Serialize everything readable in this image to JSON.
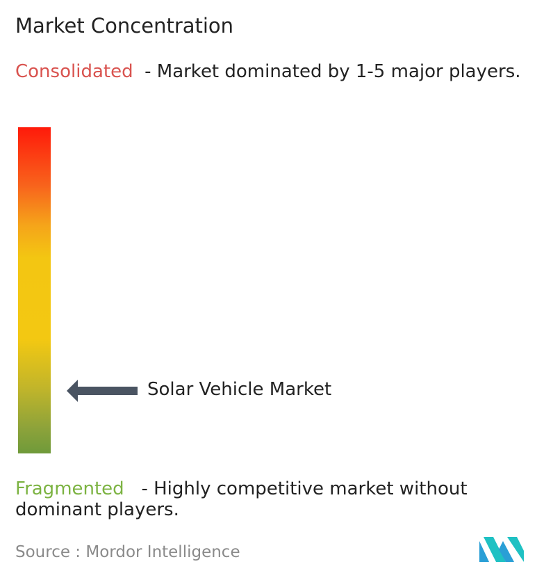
{
  "title": "Market Concentration",
  "consolidated": {
    "label": "Consolidated",
    "description": "- Market dominated by 1-5 major players."
  },
  "fragmented": {
    "label": "Fragmented",
    "description": "- Highly competitive market without dominant players."
  },
  "marker": {
    "label": "Solar Vehicle Market"
  },
  "source": {
    "label": "Source :",
    "name": "Mordor Intelligence"
  }
}
